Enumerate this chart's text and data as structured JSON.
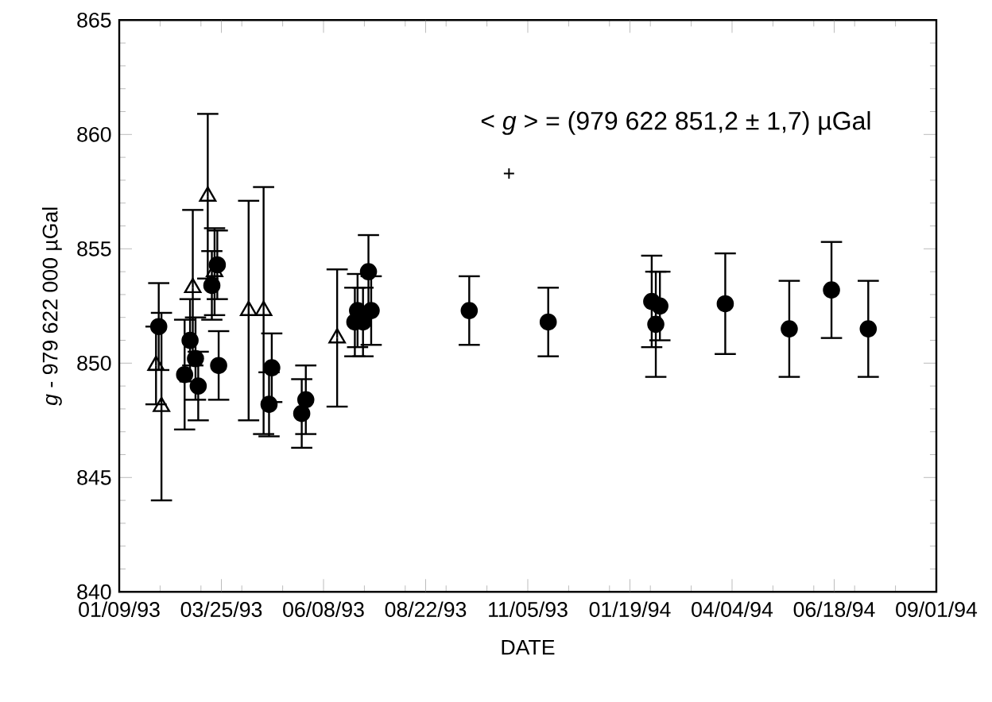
{
  "chart_data": {
    "type": "scatter",
    "xlabel": "DATE",
    "ylabel": "*g* - 979 622 000 µGal",
    "annotations": [
      "< *g* > = (979 622 851,2  ± 1,7)  µGal",
      "+"
    ],
    "xlim": [
      "1993-01-09",
      "1994-09-01"
    ],
    "xticks": [
      {
        "value": "1993-01-09",
        "label": "01/09/93"
      },
      {
        "value": "1993-03-25",
        "label": "03/25/93"
      },
      {
        "value": "1993-06-08",
        "label": "06/08/93"
      },
      {
        "value": "1993-08-22",
        "label": "08/22/93"
      },
      {
        "value": "1993-11-05",
        "label": "11/05/93"
      },
      {
        "value": "1994-01-19",
        "label": "01/19/94"
      },
      {
        "value": "1994-04-04",
        "label": "04/04/94"
      },
      {
        "value": "1994-06-18",
        "label": "06/18/94"
      },
      {
        "value": "1994-09-01",
        "label": "09/01/94"
      }
    ],
    "ylim": [
      840,
      865
    ],
    "yticks": [
      840,
      845,
      850,
      855,
      860,
      865
    ],
    "grid": false,
    "series": [
      {
        "marker": "triangle",
        "color": "#000000",
        "x": [
          "1993-02-05",
          "1993-02-09",
          "1993-03-04",
          "1993-03-15",
          "1993-03-20",
          "1993-04-14",
          "1993-04-25",
          "1993-06-18"
        ],
        "values": [
          849.9,
          848.1,
          853.3,
          857.3,
          854.0,
          852.3,
          852.3,
          851.1
        ],
        "errors": [
          1.7,
          4.1,
          3.4,
          3.6,
          1.9,
          4.8,
          5.4,
          3.0
        ]
      },
      {
        "marker": "circle",
        "color": "#000000",
        "x": [
          "1993-02-07",
          "1993-02-26",
          "1993-03-02",
          "1993-03-06",
          "1993-03-08",
          "1993-03-18",
          "1993-03-22",
          "1993-03-23",
          "1993-04-29",
          "1993-05-01",
          "1993-05-23",
          "1993-05-26",
          "1993-07-01",
          "1993-07-03",
          "1993-07-07",
          "1993-07-11",
          "1993-07-13",
          "1993-09-23",
          "1993-11-20",
          "1994-02-04",
          "1994-02-10",
          "1994-02-07",
          "1994-03-30",
          "1994-05-16",
          "1994-06-16",
          "1994-07-13"
        ],
        "values": [
          851.6,
          849.5,
          851.0,
          850.2,
          849.0,
          853.4,
          854.3,
          849.9,
          848.2,
          849.8,
          847.8,
          848.4,
          851.8,
          852.3,
          851.8,
          854.0,
          852.3,
          852.3,
          851.8,
          852.7,
          852.5,
          851.7,
          852.6,
          851.5,
          853.2,
          851.5
        ],
        "errors": [
          1.9,
          2.4,
          1.8,
          1.8,
          1.5,
          1.5,
          1.5,
          1.5,
          1.4,
          1.5,
          1.5,
          1.5,
          1.5,
          1.6,
          1.5,
          1.6,
          1.5,
          1.5,
          1.5,
          2.0,
          1.5,
          2.3,
          2.2,
          2.1,
          2.1,
          2.1
        ]
      }
    ]
  }
}
